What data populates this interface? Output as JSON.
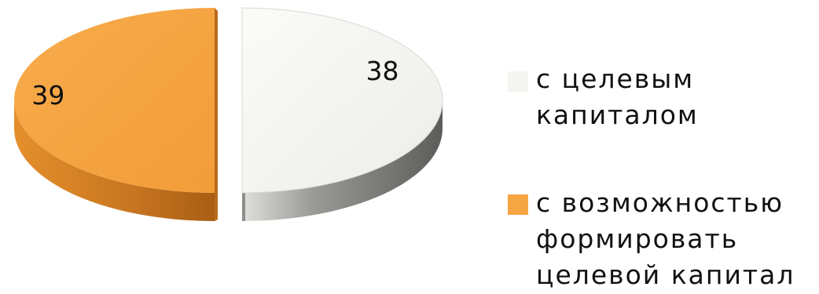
{
  "chart_data": {
    "type": "pie",
    "style": "3d-exploded",
    "categories": [
      "с целевым капиталом",
      "с возможностью формировать целевой капитал"
    ],
    "values": [
      38,
      39
    ],
    "data_labels": [
      "38",
      "39"
    ],
    "colors": [
      "#f4f4f0",
      "#f5a542"
    ],
    "legend_position": "right"
  }
}
